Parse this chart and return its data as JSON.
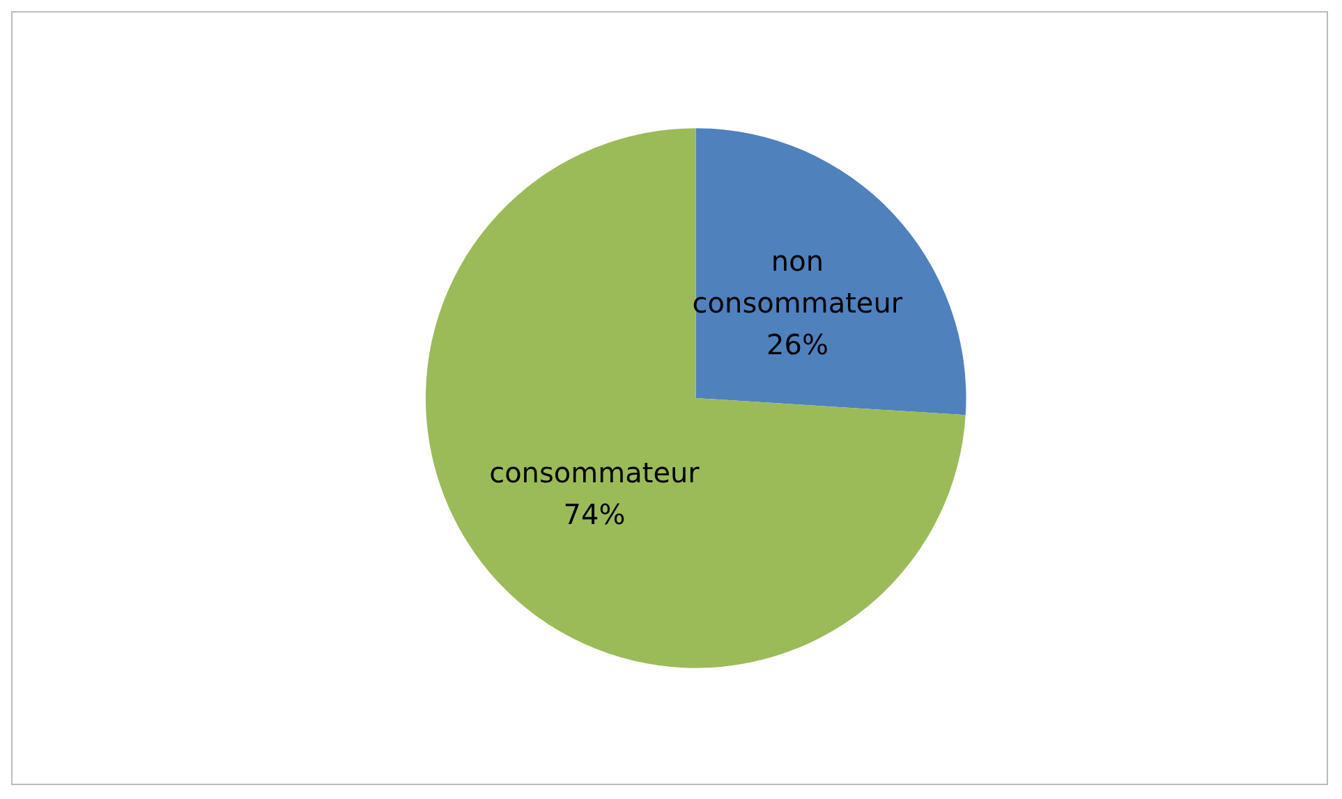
{
  "chart_data": {
    "type": "pie",
    "categories": [
      "non consommateur",
      "consommateur"
    ],
    "values": [
      26,
      74
    ],
    "colors": [
      "#4f81bd",
      "#9bbb59"
    ],
    "value_labels": [
      "26%",
      "74%"
    ],
    "legend": false
  }
}
